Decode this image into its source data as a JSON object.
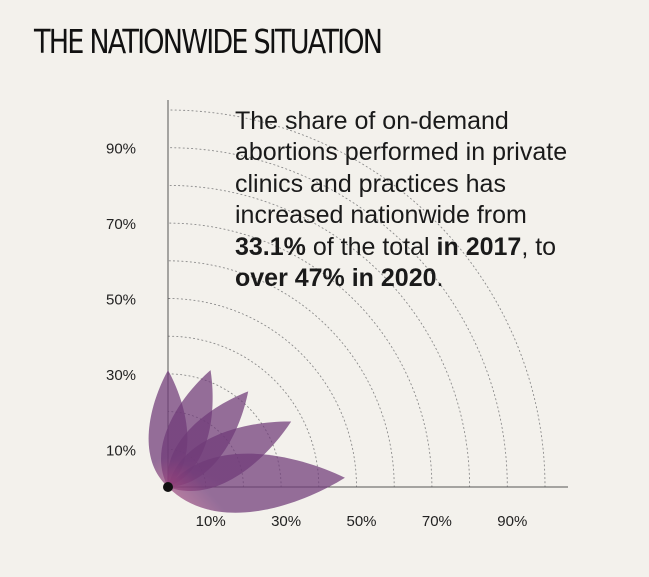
{
  "title": "THE NATIONWIDE SITUATION",
  "annotation": {
    "line1": "The share of on-demand",
    "line2": "abortions performed in private",
    "line3": "clinics and practices has",
    "line4": "increased nationwide from",
    "value_2017": "33.1%",
    "text_of_total": " of the total ",
    "year_2017": "in 2017",
    "text_to": ", to",
    "value_2020": "over 47% in 2020",
    "text_period": "."
  },
  "colors": {
    "background": "#f3f1ec",
    "petal_light": "#f06a8e",
    "petal_mid": "#d44a7a",
    "petal_dark": "#6f3a78",
    "axis": "#555555",
    "origin": "#111111"
  },
  "chart_data": {
    "type": "radial",
    "x_ticks": [
      "10%",
      "30%",
      "50%",
      "70%",
      "90%"
    ],
    "y_ticks": [
      "10%",
      "30%",
      "50%",
      "70%",
      "90%"
    ],
    "x_tick_values": [
      10,
      30,
      50,
      70,
      90
    ],
    "y_tick_values": [
      10,
      30,
      50,
      70,
      90
    ],
    "range": [
      0,
      100
    ],
    "arcs": [
      10,
      20,
      30,
      40,
      50,
      60,
      70,
      80,
      90,
      100
    ],
    "grid": true,
    "petals": [
      {
        "angle_deg": 90,
        "value": 31
      },
      {
        "angle_deg": 70,
        "value": 33
      },
      {
        "angle_deg": 50,
        "value": 33.1
      },
      {
        "angle_deg": 28,
        "value": 37
      },
      {
        "angle_deg": 3,
        "value": 47
      }
    ]
  }
}
